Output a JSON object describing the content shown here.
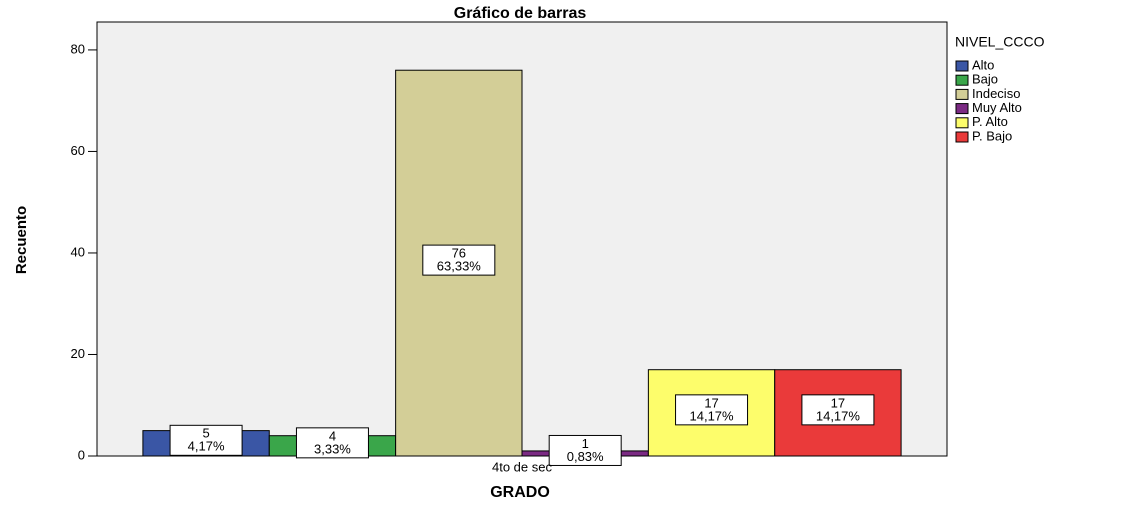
{
  "chart_data": {
    "type": "bar",
    "title": "Gráfico de barras",
    "x_label": "GRADO",
    "y_label": "Recuento",
    "categories": [
      "4to de sec"
    ],
    "legend_title": "NIVEL_CCCO",
    "legend": "right",
    "ylim": [
      0,
      85.5
    ],
    "yticks": [
      0,
      20,
      40,
      60,
      80
    ],
    "grid": false,
    "series": [
      {
        "name": "Alto",
        "color": "#3a56a5",
        "values": [
          5
        ],
        "percent_labels": [
          "4,17%"
        ]
      },
      {
        "name": "Bajo",
        "color": "#3aa64a",
        "values": [
          4
        ],
        "percent_labels": [
          "3,33%"
        ]
      },
      {
        "name": "Indeciso",
        "color": "#d3ce97",
        "values": [
          76
        ],
        "percent_labels": [
          "63,33%"
        ]
      },
      {
        "name": "Muy Alto",
        "color": "#7b2a83",
        "values": [
          1
        ],
        "percent_labels": [
          "0,83%"
        ]
      },
      {
        "name": "P. Alto",
        "color": "#fdfd6b",
        "values": [
          17
        ],
        "percent_labels": [
          "14,17%"
        ]
      },
      {
        "name": "P. Bajo",
        "color": "#ea3a3a",
        "values": [
          17
        ],
        "percent_labels": [
          "14,17%"
        ]
      }
    ]
  }
}
